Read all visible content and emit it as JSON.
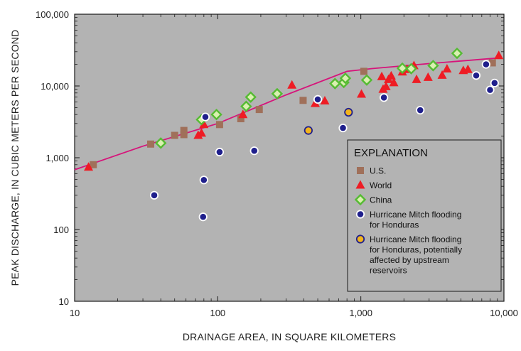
{
  "chart_data": {
    "type": "scatter",
    "title": "",
    "xlabel": "DRAINAGE AREA, IN SQUARE KILOMETERS",
    "ylabel": "PEAK DISCHARGE, IN CUBIC METERS PER SECOND",
    "x_scale": "log",
    "y_scale": "log",
    "xlim": [
      10,
      10000
    ],
    "ylim": [
      10,
      100000
    ],
    "x_ticks": [
      10,
      100,
      1000,
      10000
    ],
    "x_tick_labels": [
      "10",
      "100",
      "1,000",
      "10,000"
    ],
    "y_ticks": [
      10,
      100,
      1000,
      10000,
      100000
    ],
    "y_tick_labels": [
      "10",
      "100",
      "1,000",
      "10,000",
      "100,000"
    ],
    "grid": false,
    "background": "#b3b3b3",
    "legend_position": "bottom-right",
    "legend_title": "EXPLANATION",
    "envelope_curve": {
      "color": "#d6147a",
      "x": [
        10,
        30,
        100,
        300,
        800,
        1200,
        3000,
        9000
      ],
      "y": [
        680,
        1450,
        3000,
        7500,
        16000,
        17500,
        20500,
        24500
      ]
    },
    "series": [
      {
        "name": "U.S.",
        "marker": "square",
        "color": "#a0705a",
        "points": [
          [
            13.5,
            800
          ],
          [
            34,
            1550
          ],
          [
            50,
            2050
          ],
          [
            58,
            2100
          ],
          [
            58,
            2400
          ],
          [
            103,
            2900
          ],
          [
            145,
            3500
          ],
          [
            195,
            4700
          ],
          [
            395,
            6300
          ],
          [
            1050,
            16000
          ],
          [
            8300,
            21000
          ]
        ]
      },
      {
        "name": "World",
        "marker": "triangle",
        "color": "#ee1c24",
        "points": [
          [
            12.5,
            740
          ],
          [
            73,
            2050
          ],
          [
            77,
            2200
          ],
          [
            80,
            2900
          ],
          [
            150,
            4000
          ],
          [
            330,
            10300
          ],
          [
            480,
            5700
          ],
          [
            560,
            6200
          ],
          [
            1010,
            7700
          ],
          [
            1400,
            13500
          ],
          [
            1430,
            9000
          ],
          [
            1500,
            9800
          ],
          [
            1560,
            12300
          ],
          [
            1630,
            13800
          ],
          [
            1700,
            11100
          ],
          [
            1950,
            15700
          ],
          [
            2100,
            17000
          ],
          [
            2350,
            19200
          ],
          [
            2450,
            12300
          ],
          [
            2950,
            13200
          ],
          [
            3700,
            14100
          ],
          [
            4000,
            17300
          ],
          [
            5200,
            16400
          ],
          [
            5600,
            17000
          ],
          [
            9200,
            26500
          ]
        ]
      },
      {
        "name": "China",
        "marker": "diamond",
        "color": "#55bb33",
        "points": [
          [
            40,
            1600
          ],
          [
            77,
            3400
          ],
          [
            98,
            4000
          ],
          [
            158,
            5200
          ],
          [
            170,
            7000
          ],
          [
            260,
            7800
          ],
          [
            660,
            10800
          ],
          [
            760,
            11200
          ],
          [
            780,
            12800
          ],
          [
            1100,
            12100
          ],
          [
            1950,
            17700
          ],
          [
            2250,
            17400
          ],
          [
            3200,
            19200
          ],
          [
            4700,
            28500
          ]
        ]
      },
      {
        "name": "Hurricane Mitch flooding for Honduras",
        "marker": "circle",
        "color": "#1f1f8c",
        "points": [
          [
            36,
            300
          ],
          [
            79,
            150
          ],
          [
            80,
            490
          ],
          [
            82,
            3700
          ],
          [
            103,
            1200
          ],
          [
            180,
            1250
          ],
          [
            500,
            6500
          ],
          [
            750,
            2600
          ],
          [
            1450,
            6900
          ],
          [
            2600,
            4600
          ],
          [
            6400,
            14000
          ],
          [
            7500,
            20000
          ],
          [
            8000,
            8800
          ],
          [
            8600,
            11000
          ]
        ]
      },
      {
        "name": "Hurricane Mitch flooding for Honduras, potentially affected by upstream reservoirs",
        "marker": "circle",
        "color": "#f2b41c",
        "points": [
          [
            430,
            2400
          ],
          [
            820,
            4300
          ]
        ]
      }
    ],
    "legend_entries": [
      [
        "U.S."
      ],
      [
        "World"
      ],
      [
        "China"
      ],
      [
        "Hurricane Mitch flooding",
        "for Honduras"
      ],
      [
        "Hurricane Mitch flooding",
        "for Honduras, potentially",
        "affected by upstream",
        "reservoirs"
      ]
    ]
  }
}
